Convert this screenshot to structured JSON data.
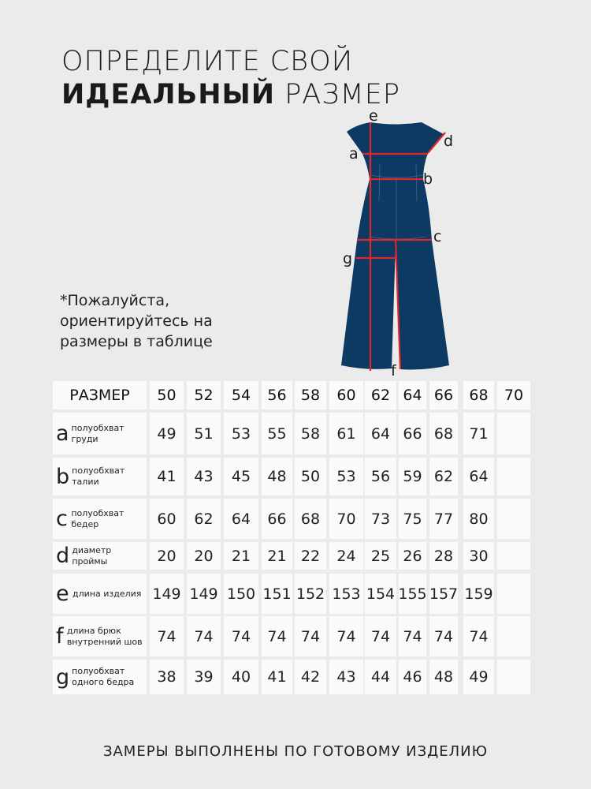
{
  "title": {
    "line1": "ОПРЕДЕЛИТЕ СВОЙ",
    "line2_bold": "ИДЕАЛЬНЫЙ",
    "line2_rest": "РАЗМЕР"
  },
  "note": "*Пожалуйста, ориентируйтесь на размеры в таблице",
  "figure": {
    "garment_color": "#0d3a63",
    "measure_color": "#e0262e",
    "labels": [
      "e",
      "a",
      "d",
      "b",
      "c",
      "g",
      "f"
    ]
  },
  "table": {
    "header_label": "РАЗМЕР",
    "sizes": [
      "50",
      "52",
      "54",
      "56",
      "58",
      "60",
      "62",
      "64",
      "66",
      "68",
      "70"
    ],
    "rows": [
      {
        "letter": "a",
        "desc": "полуобхват груди",
        "values": [
          "49",
          "51",
          "53",
          "55",
          "58",
          "61",
          "64",
          "66",
          "68",
          "71",
          ""
        ]
      },
      {
        "letter": "b",
        "desc": "полуобхват талии",
        "values": [
          "41",
          "43",
          "45",
          "48",
          "50",
          "53",
          "56",
          "59",
          "62",
          "64",
          ""
        ]
      },
      {
        "letter": "c",
        "desc": "полуобхват бедер",
        "values": [
          "60",
          "62",
          "64",
          "66",
          "68",
          "70",
          "73",
          "75",
          "77",
          "80",
          ""
        ]
      },
      {
        "letter": "d",
        "desc": "диаметр проймы",
        "values": [
          "20",
          "20",
          "21",
          "21",
          "22",
          "24",
          "25",
          "26",
          "28",
          "30",
          ""
        ]
      },
      {
        "letter": "e",
        "desc": "длина изделия",
        "values": [
          "149",
          "149",
          "150",
          "151",
          "152",
          "153",
          "154",
          "155",
          "157",
          "159",
          ""
        ]
      },
      {
        "letter": "f",
        "desc": "длина брюк внутренний шов",
        "values": [
          "74",
          "74",
          "74",
          "74",
          "74",
          "74",
          "74",
          "74",
          "74",
          "74",
          ""
        ]
      },
      {
        "letter": "g",
        "desc": "полуобхват одного бедра",
        "values": [
          "38",
          "39",
          "40",
          "41",
          "42",
          "43",
          "44",
          "46",
          "48",
          "49",
          ""
        ]
      }
    ]
  },
  "footer": "ЗАМЕРЫ ВЫПОЛНЕНЫ ПО ГОТОВОМУ ИЗДЕЛИЮ"
}
